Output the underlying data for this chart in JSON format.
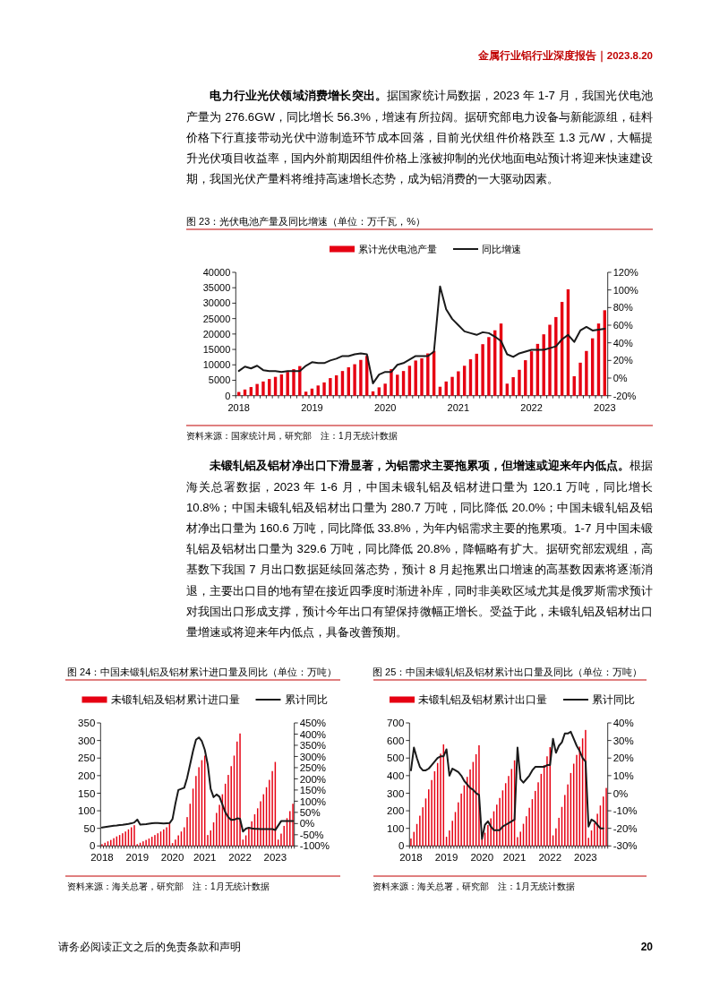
{
  "chart_data": [
    {
      "type": "other",
      "annotations": [
        "金属行业铝行业深度报告｜2023.8.20",
        "**电力行业光伏领域消费增长突出。**据国家统计局数据，2023 年 1-7 月，我国光伏电池产量为 276.6GW，同比增长 56.3%，增速有所拉阔。据研究部电力设备与新能源组，硅料价格下行直接带动光伏中游制造环节成本回落，目前光伏组件价格跌至 1.3 元/W，大幅提升光伏项目收益率，国内外前期因组件价格上涨被抑制的光伏地面电站预计将迎来快速建设期，我国光伏产量料将维持高速增长态势，成为铝消费的一大驱动因素。"
      ]
    },
    {
      "type": "bar",
      "title": "图 23：光伏电池产量及同比增速（单位：万千瓦，%）",
      "categories": [
        "2018",
        null,
        null,
        null,
        null,
        null,
        null,
        null,
        null,
        null,
        null,
        null,
        "2019",
        null,
        null,
        null,
        null,
        null,
        null,
        null,
        null,
        null,
        null,
        null,
        "2020",
        null,
        null,
        null,
        null,
        null,
        null,
        null,
        null,
        null,
        null,
        null,
        "2021",
        null,
        null,
        null,
        null,
        null,
        null,
        null,
        null,
        null,
        null,
        null,
        "2022",
        null,
        null,
        null,
        null,
        null,
        null,
        null,
        null,
        null,
        null,
        null,
        "2023"
      ],
      "series": [
        {
          "name": "累计光伏电池产量",
          "color": "#e60012",
          "values": [
            1200,
            2000,
            2800,
            3800,
            4600,
            5400,
            6100,
            6900,
            7700,
            8600,
            9600,
            1300,
            2300,
            3300,
            4300,
            5700,
            6600,
            8000,
            9200,
            10200,
            11600,
            12900,
            1400,
            2700,
            3900,
            8600,
            6800,
            8000,
            9700,
            11400,
            12100,
            13700,
            14500,
            2900,
            4600,
            6100,
            7900,
            9700,
            11800,
            13600,
            16700,
            19000,
            21200,
            23400,
            3900,
            6000,
            8400,
            11500,
            14400,
            16800,
            19900,
            23000,
            25500,
            30400,
            34500,
            6300,
            10700,
            14500,
            18600,
            23400,
            27700
          ]
        },
        {
          "name": "同比增速",
          "type": "line",
          "axis": "y2",
          "color": "#1a1a1a",
          "values": [
            8,
            13,
            11,
            14,
            9,
            8,
            8,
            7,
            8,
            8,
            8,
            14,
            18,
            17,
            17,
            20,
            22,
            25,
            25,
            27,
            28,
            27,
            -6,
            4,
            7,
            7,
            15,
            17,
            21,
            25,
            25,
            25,
            30,
            104,
            78,
            67,
            60,
            53,
            51,
            49,
            52,
            51,
            47,
            42,
            27,
            24,
            28,
            30,
            32,
            32,
            32,
            34,
            36,
            44,
            49,
            41,
            54,
            58,
            54,
            55,
            56
          ]
        }
      ],
      "ylim": [
        0,
        40000
      ],
      "yticks": [
        0,
        5000,
        10000,
        15000,
        20000,
        25000,
        30000,
        35000,
        40000
      ],
      "y2lim": [
        -20,
        120
      ],
      "y2ticks": [
        {
          "value": -20,
          "label": "-20%"
        },
        {
          "value": 0,
          "label": "0%"
        },
        {
          "value": 20,
          "label": "20%"
        },
        {
          "value": 40,
          "label": "40%"
        },
        {
          "value": 60,
          "label": "60%"
        },
        {
          "value": 80,
          "label": "80%"
        },
        {
          "value": 100,
          "label": "100%"
        },
        {
          "value": 120,
          "label": "120%"
        }
      ],
      "legend": "top",
      "annotations": [
        "资料来源：国家统计局，研究部　注：1月无统计数据"
      ]
    },
    {
      "type": "other",
      "annotations": [
        "**未锻轧铝及铝材净出口下滑显著，为铝需求主要拖累项，但增速或迎来年内低点。**根据海关总署数据，2023 年 1-6 月，中国未锻轧铝及铝材进口量为 120.1 万吨，同比增长 10.8%；中国未锻轧铝及铝材出口量为 280.7 万吨，同比降低 20.0%；中国未锻轧铝及铝材净出口量为 160.6 万吨，同比降低 33.8%，为年内铝需求主要的拖累项。1-7 月中国未锻轧铝及铝材出口量为 329.6 万吨，同比降低 20.8%，降幅略有扩大。据研究部宏观组，高基数下我国 7 月出口数据延续回落态势，预计 8 月起拖累出口增速的高基数因素将逐渐消退，主要出口目的地有望在接近四季度时渐进补库，同时非美欧区域尤其是俄罗斯需求预计对我国出口形成支撑，预计今年出口有望保持微幅正增长。受益于此，未锻轧铝及铝材出口量增速或将迎来年内低点，具备改善预期。"
      ]
    },
    {
      "type": "bar",
      "title": "图 24：中国未锻轧铝及铝材累计进口量及同比（单位：万吨）",
      "categories": [
        "2018",
        null,
        null,
        null,
        null,
        null,
        null,
        null,
        null,
        null,
        null,
        null,
        "2019",
        null,
        null,
        null,
        null,
        null,
        null,
        null,
        null,
        null,
        null,
        null,
        "2020",
        null,
        null,
        null,
        null,
        null,
        null,
        null,
        null,
        null,
        null,
        "2021",
        null,
        null,
        null,
        null,
        null,
        null,
        null,
        null,
        null,
        null,
        null,
        "2022",
        null,
        null,
        null,
        null,
        null,
        null,
        null,
        null,
        null,
        null,
        null,
        "2023",
        null,
        null,
        null,
        null,
        null,
        null
      ],
      "series": [
        {
          "name": "未锻轧铝及铝材累计进口量",
          "color": "#e60012",
          "values": [
            5,
            9,
            13,
            17,
            22,
            27,
            31,
            36,
            41,
            47,
            53,
            59,
            5,
            9,
            13,
            17,
            21,
            26,
            31,
            36,
            41,
            47,
            53,
            64,
            8,
            18,
            30,
            41,
            53,
            82,
            120,
            163,
            199,
            224,
            244,
            257,
            31,
            44,
            67,
            94,
            117,
            147,
            177,
            202,
            227,
            257,
            297,
            320,
            18,
            30,
            50,
            70,
            90,
            107,
            127,
            147,
            167,
            188,
            213,
            239,
            18,
            35,
            57,
            79,
            99,
            120
          ]
        },
        {
          "name": "累计同比",
          "type": "line",
          "axis": "y2",
          "color": "#1a1a1a",
          "values": [
            -18,
            -16,
            -14,
            -12,
            -10,
            -9,
            -7,
            -6,
            -4,
            -2,
            1,
            5,
            18,
            -5,
            -4,
            -3,
            -1,
            1,
            2,
            2,
            1,
            0,
            1,
            2,
            20,
            90,
            150,
            155,
            160,
            205,
            265,
            325,
            375,
            385,
            368,
            330,
            265,
            155,
            118,
            130,
            120,
            85,
            50,
            28,
            16,
            17,
            23,
            21,
            -36,
            -23,
            -19,
            -22,
            -24,
            -24,
            -25,
            -25,
            -25,
            -25,
            -25,
            -29,
            -9,
            11,
            11,
            11,
            11,
            11
          ]
        }
      ],
      "ylim": [
        0,
        350
      ],
      "yticks": [
        0,
        50,
        100,
        150,
        200,
        250,
        300,
        350
      ],
      "y2lim": [
        -100,
        450
      ],
      "y2ticks": [
        {
          "value": -100,
          "label": "-100%"
        },
        {
          "value": -50,
          "label": "-50%"
        },
        {
          "value": 0,
          "label": "0%"
        },
        {
          "value": 50,
          "label": "50%"
        },
        {
          "value": 100,
          "label": "100%"
        },
        {
          "value": 150,
          "label": "150%"
        },
        {
          "value": 200,
          "label": "200%"
        },
        {
          "value": 250,
          "label": "250%"
        },
        {
          "value": 300,
          "label": "300%"
        },
        {
          "value": 350,
          "label": "350%"
        },
        {
          "value": 400,
          "label": "400%"
        },
        {
          "value": 450,
          "label": "450%"
        }
      ],
      "legend": "top",
      "annotations": [
        "资料来源：海关总署，研究部　注：1月无统计数据"
      ]
    },
    {
      "type": "bar",
      "title": "图 25：中国未锻轧铝及铝材累计出口量及同比（单位：万吨）",
      "categories": [
        "2018",
        null,
        null,
        null,
        null,
        null,
        null,
        null,
        null,
        null,
        null,
        null,
        "2019",
        null,
        null,
        null,
        null,
        null,
        null,
        null,
        null,
        null,
        null,
        null,
        "2020",
        null,
        null,
        null,
        null,
        null,
        null,
        null,
        null,
        null,
        null,
        "2021",
        null,
        null,
        null,
        null,
        null,
        null,
        null,
        null,
        null,
        null,
        null,
        "2022",
        null,
        null,
        null,
        null,
        null,
        null,
        null,
        null,
        null,
        null,
        null,
        "2023",
        null,
        null,
        null,
        null,
        null,
        null,
        null
      ],
      "series": [
        {
          "name": "未锻轧铝及铝材累计出口量",
          "color": "#e60012",
          "values": [
            42,
            80,
            125,
            172,
            220,
            270,
            322,
            375,
            425,
            472,
            525,
            578,
            52,
            88,
            143,
            193,
            248,
            298,
            345,
            393,
            435,
            478,
            522,
            573,
            40,
            75,
            119,
            157,
            197,
            235,
            273,
            316,
            357,
            398,
            438,
            487,
            50,
            81,
            126,
            169,
            217,
            266,
            313,
            362,
            410,
            460,
            510,
            562,
            60,
            100,
            160,
            222,
            290,
            350,
            415,
            468,
            518,
            565,
            612,
            660,
            46,
            88,
            130,
            183,
            230,
            281,
            330
          ]
        },
        {
          "name": "累计同比",
          "type": "line",
          "axis": "y2",
          "color": "#1a1a1a",
          "values": [
            13,
            26,
            20,
            15,
            13,
            13,
            14,
            16,
            18,
            20,
            21,
            21,
            25,
            10,
            14,
            13,
            12,
            10,
            7,
            5,
            3,
            2,
            0,
            -1,
            -26,
            -18,
            -16,
            -19,
            -21,
            -21,
            -21,
            -19,
            -18,
            -17,
            -16,
            -15,
            26,
            8,
            6,
            8,
            10,
            13,
            15,
            15,
            15,
            15,
            16,
            16,
            31,
            23,
            27,
            29,
            34,
            34,
            35,
            31,
            27,
            24,
            20,
            18,
            -19,
            -15,
            -16,
            -18,
            -20,
            -20,
            null
          ]
        }
      ],
      "ylim": [
        0,
        700
      ],
      "yticks": [
        0,
        100,
        200,
        300,
        400,
        500,
        600,
        700
      ],
      "y2lim": [
        -30,
        40
      ],
      "y2ticks": [
        {
          "value": -30,
          "label": "-30%"
        },
        {
          "value": -20,
          "label": "-20%"
        },
        {
          "value": -10,
          "label": "-10%"
        },
        {
          "value": 0,
          "label": "0%"
        },
        {
          "value": 10,
          "label": "10%"
        },
        {
          "value": 20,
          "label": "20%"
        },
        {
          "value": 30,
          "label": "30%"
        },
        {
          "value": 40,
          "label": "40%"
        }
      ],
      "legend": "top",
      "annotations": [
        "资料来源：海关总署，研究部　注：1月无统计数据"
      ]
    },
    {
      "type": "other",
      "annotations": [
        "请务必阅读正文之后的免责条款和声明",
        "20"
      ]
    }
  ]
}
